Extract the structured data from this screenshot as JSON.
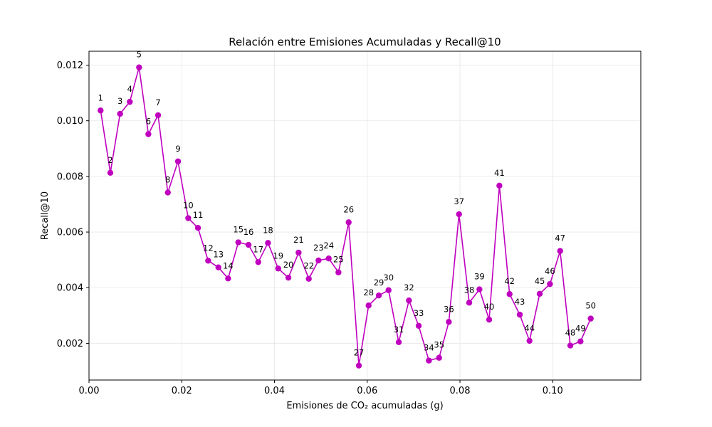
{
  "chart_data": {
    "type": "line",
    "title": "Relación entre Emisiones Acumuladas y Recall@10",
    "xlabel": "Emisiones de CO₂ acumuladas (g)",
    "ylabel": "Recall@10",
    "xlim": [
      0.0,
      0.119
    ],
    "ylim": [
      0.00068,
      0.0125
    ],
    "xticks": [
      "0.00",
      "0.02",
      "0.04",
      "0.06",
      "0.08",
      "0.10"
    ],
    "yticks": [
      "0.002",
      "0.004",
      "0.006",
      "0.008",
      "0.010",
      "0.012"
    ],
    "xtick_values": [
      0.0,
      0.02,
      0.04,
      0.06,
      0.08,
      0.1
    ],
    "ytick_values": [
      0.002,
      0.004,
      0.006,
      0.008,
      0.01,
      0.012
    ],
    "grid": true,
    "color": "#bf00bf",
    "marker": "circle",
    "series": [
      {
        "labels": [
          "1",
          "2",
          "3",
          "4",
          "5",
          "6",
          "7",
          "8",
          "9",
          "10",
          "11",
          "12",
          "13",
          "14",
          "15",
          "16",
          "17",
          "18",
          "19",
          "20",
          "21",
          "22",
          "23",
          "24",
          "25",
          "26",
          "27",
          "28",
          "29",
          "30",
          "31",
          "32",
          "33",
          "34",
          "35",
          "36",
          "37",
          "38",
          "39",
          "40",
          "41",
          "42",
          "43",
          "44",
          "45",
          "46",
          "47",
          "48",
          "49",
          "50"
        ],
        "x": [
          0.0025,
          0.0046,
          0.0067,
          0.0088,
          0.0108,
          0.0128,
          0.0149,
          0.017,
          0.0192,
          0.0214,
          0.0235,
          0.0257,
          0.0279,
          0.03,
          0.0322,
          0.0344,
          0.0365,
          0.0386,
          0.0408,
          0.043,
          0.0452,
          0.0474,
          0.0495,
          0.0517,
          0.0538,
          0.056,
          0.0582,
          0.0603,
          0.0625,
          0.0646,
          0.0668,
          0.069,
          0.0711,
          0.0733,
          0.0755,
          0.0776,
          0.0798,
          0.082,
          0.0842,
          0.0863,
          0.0885,
          0.0907,
          0.0929,
          0.095,
          0.0972,
          0.0994,
          0.1016,
          0.1038,
          0.106,
          0.1082
        ],
        "y": [
          0.01037,
          0.00813,
          0.01025,
          0.01068,
          0.01192,
          0.00952,
          0.0102,
          0.00742,
          0.00854,
          0.0065,
          0.00615,
          0.00497,
          0.00473,
          0.00433,
          0.00563,
          0.00554,
          0.00492,
          0.00561,
          0.00469,
          0.00436,
          0.00526,
          0.00432,
          0.00498,
          0.00505,
          0.00455,
          0.00635,
          0.0012,
          0.00336,
          0.00372,
          0.00391,
          0.00204,
          0.00354,
          0.00263,
          0.00138,
          0.00148,
          0.00277,
          0.00664,
          0.00346,
          0.00394,
          0.00285,
          0.00767,
          0.00377,
          0.00303,
          0.00209,
          0.00378,
          0.00413,
          0.00532,
          0.00192,
          0.00207,
          0.00289
        ]
      }
    ]
  }
}
